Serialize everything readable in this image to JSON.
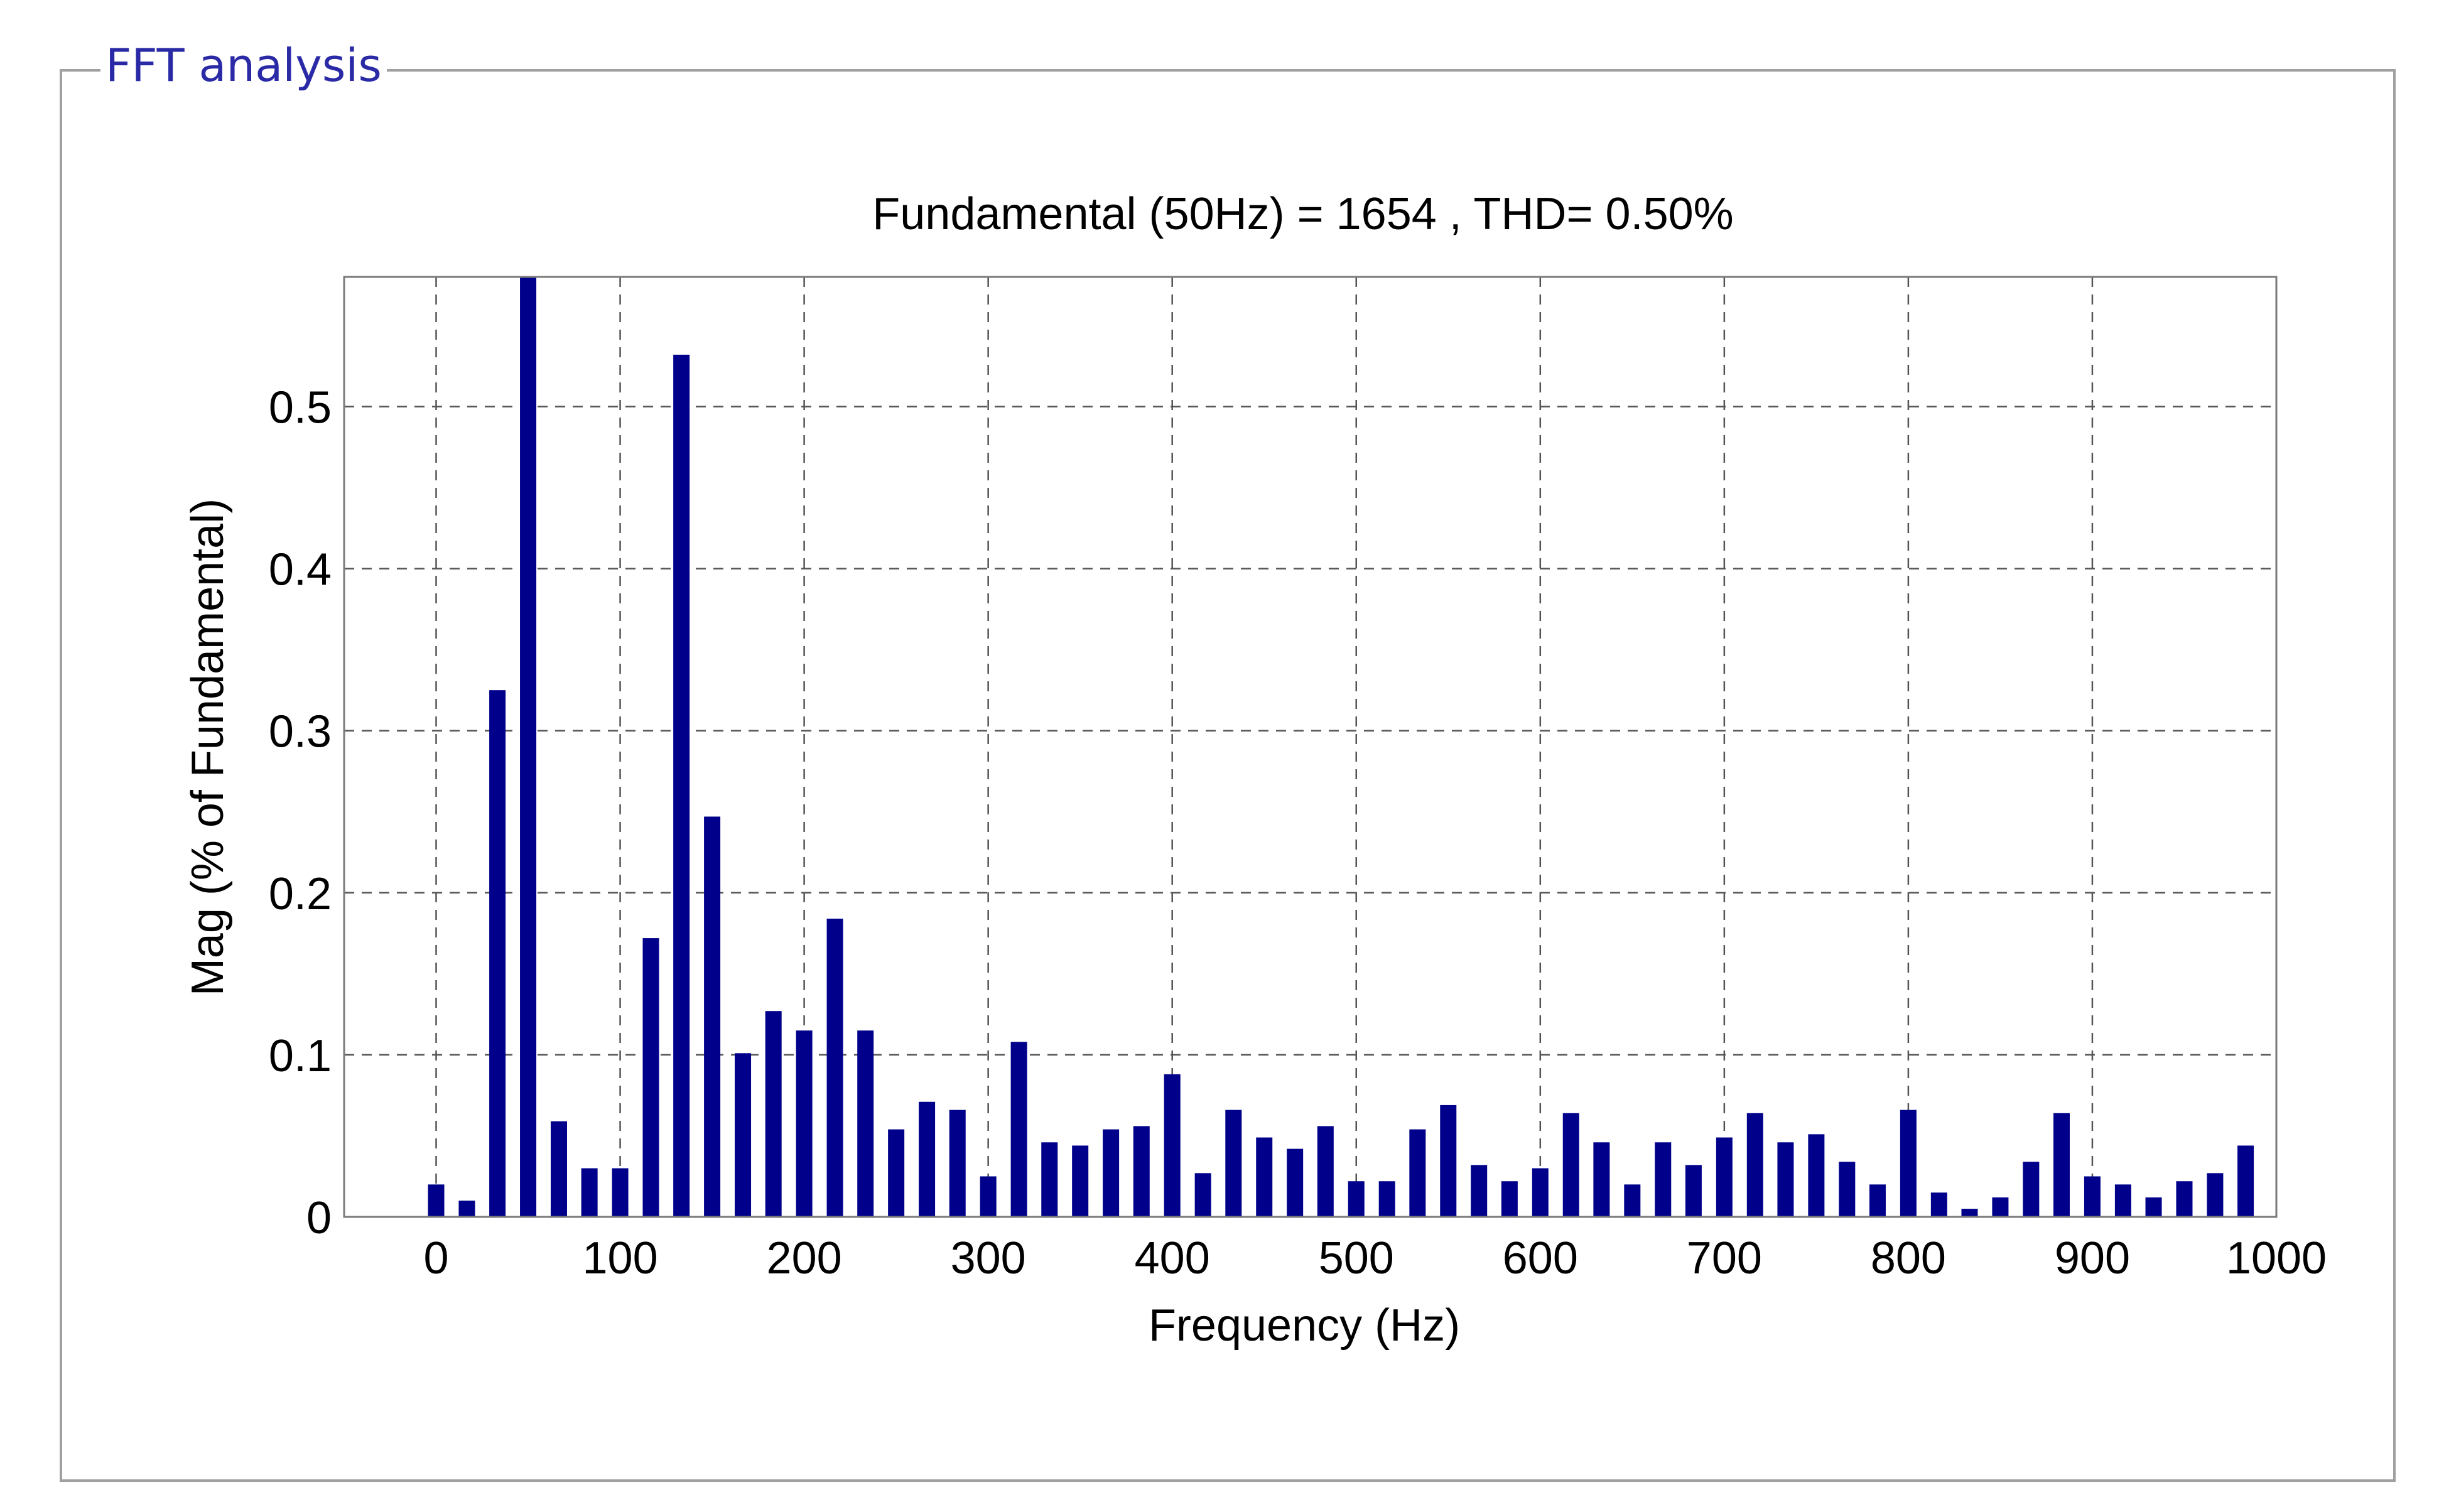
{
  "panel": {
    "title": "FFT analysis"
  },
  "colors": {
    "bar": "#00008b",
    "grid": "#555555",
    "axes": "#7a7a7a",
    "panel_border": "#a0a0a0",
    "panel_title": "#2a2aa6"
  },
  "chart_data": {
    "type": "bar",
    "title": "Fundamental (50Hz) = 1654 , THD= 0.50%",
    "xlabel": "Frequency (Hz)",
    "ylabel": "Mag (% of Fundamental)",
    "xlim": [
      -50,
      1000
    ],
    "ylim": [
      0,
      0.58
    ],
    "xticks": [
      0,
      100,
      200,
      300,
      400,
      500,
      600,
      700,
      800,
      900,
      1000
    ],
    "yticks": [
      0,
      0.1,
      0.2,
      0.3,
      0.4,
      0.5
    ],
    "ytick_labels": [
      "0",
      "0.1",
      "0.2",
      "0.3",
      "0.4",
      "0.5"
    ],
    "grid": true,
    "x": [
      0,
      16.7,
      33.3,
      50,
      66.7,
      83.3,
      100,
      116.7,
      133.3,
      150,
      166.7,
      183.3,
      200,
      216.7,
      233.3,
      250,
      266.7,
      283.3,
      300,
      316.7,
      333.3,
      350,
      366.7,
      383.3,
      400,
      416.7,
      433.3,
      450,
      466.7,
      483.3,
      500,
      516.7,
      533.3,
      550,
      566.7,
      583.3,
      600,
      616.7,
      633.3,
      650,
      666.7,
      683.3,
      700,
      716.7,
      733.3,
      750,
      766.7,
      783.3,
      800,
      816.7,
      833.3,
      850,
      866.7,
      883.3,
      900,
      916.7,
      933.3,
      950,
      966.7,
      983.3
    ],
    "values": [
      0.02,
      0.01,
      0.325,
      0.58,
      0.059,
      0.03,
      0.03,
      0.172,
      0.532,
      0.247,
      0.101,
      0.127,
      0.115,
      0.184,
      0.115,
      0.054,
      0.071,
      0.066,
      0.025,
      0.108,
      0.046,
      0.044,
      0.054,
      0.056,
      0.088,
      0.027,
      0.066,
      0.049,
      0.042,
      0.056,
      0.022,
      0.022,
      0.054,
      0.069,
      0.032,
      0.022,
      0.03,
      0.064,
      0.046,
      0.02,
      0.046,
      0.032,
      0.049,
      0.064,
      0.046,
      0.051,
      0.034,
      0.02,
      0.066,
      0.015,
      0.005,
      0.012,
      0.034,
      0.064,
      0.025,
      0.02,
      0.012,
      0.022,
      0.027,
      0.044
    ]
  }
}
